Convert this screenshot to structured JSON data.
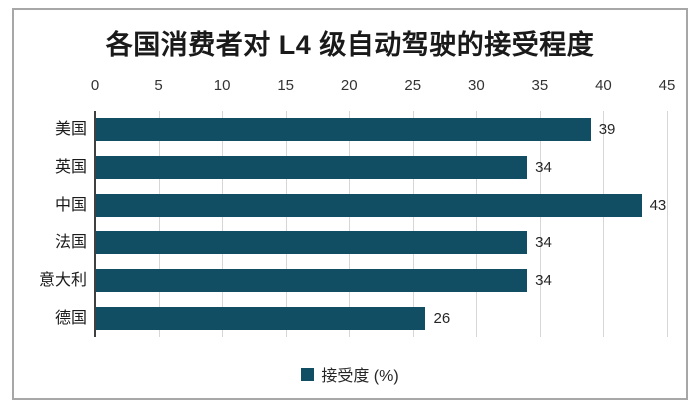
{
  "chart": {
    "title": "各国消费者对 L4 级自动驾驶的接受程度",
    "legend_label": "接受度 (%)",
    "colors": {
      "bar": "#114e63",
      "grid": "#d6d6d6",
      "axis": "#404040",
      "frame_border": "#a7a7a7",
      "title_text": "#1a1a1a"
    }
  },
  "chart_data": {
    "type": "bar",
    "orientation": "horizontal",
    "title": "各国消费者对 L4 级自动驾驶的接受程度",
    "categories": [
      "美国",
      "英国",
      "中国",
      "法国",
      "意大利",
      "德国"
    ],
    "values": [
      39,
      34,
      43,
      34,
      34,
      26
    ],
    "series": [
      {
        "name": "接受度 (%)",
        "values": [
          39,
          34,
          43,
          34,
          34,
          26
        ]
      }
    ],
    "xlabel": "",
    "ylabel": "",
    "xlim": [
      0,
      45
    ],
    "xticks": [
      0,
      5,
      10,
      15,
      20,
      25,
      30,
      35,
      40,
      45
    ],
    "x_axis_position": "top",
    "grid": true,
    "bar_value_labels": [
      39,
      34,
      43,
      34,
      34,
      26
    ],
    "legend_entries": [
      "接受度 (%)"
    ],
    "legend_position": "bottom"
  }
}
